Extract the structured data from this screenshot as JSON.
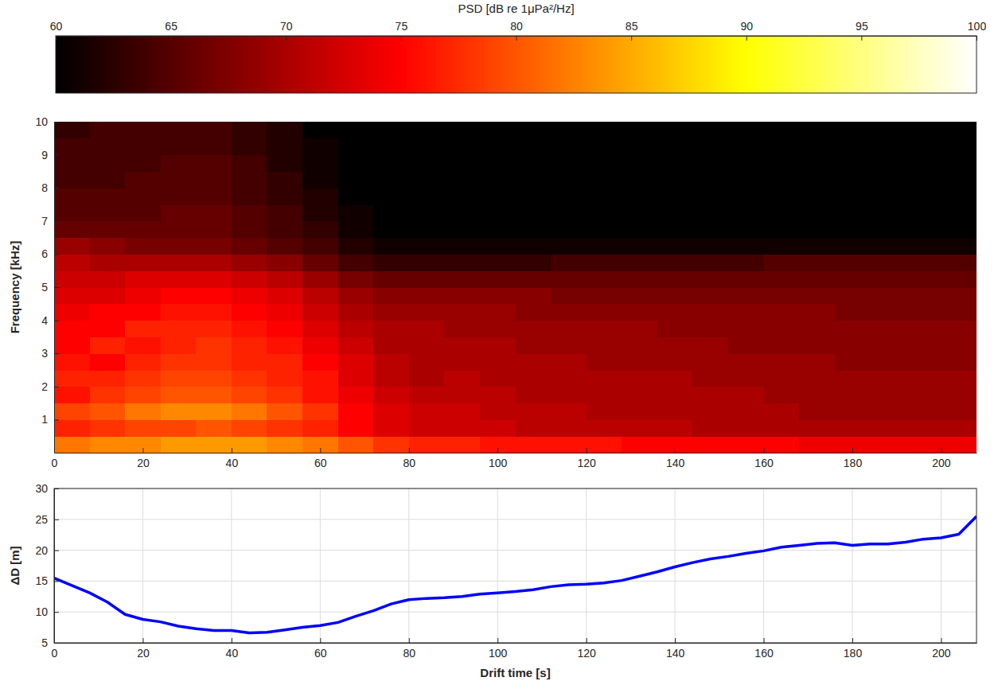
{
  "chart_data": [
    {
      "type": "heatmap",
      "y_label": "Frequency [kHz]",
      "xlim": [
        0,
        208
      ],
      "xticks": [
        0,
        20,
        40,
        60,
        80,
        100,
        120,
        140,
        160,
        180,
        200
      ],
      "ylim": [
        0,
        10
      ],
      "yticks": [
        1,
        2,
        3,
        4,
        5,
        6,
        7,
        8,
        9,
        10
      ],
      "time_bins": [
        0,
        8,
        16,
        24,
        32,
        40,
        48,
        56,
        64,
        72,
        80,
        88,
        96,
        104,
        112,
        120,
        128,
        136,
        144,
        152,
        160,
        168,
        176,
        184,
        192,
        200,
        208
      ],
      "frequency_bins": [
        0,
        0.5,
        1,
        1.5,
        2,
        2.5,
        3,
        3.5,
        4,
        4.5,
        5,
        5.5,
        6,
        6.5,
        7,
        7.5,
        8,
        8.5,
        9,
        9.5,
        10
      ],
      "values": [
        [
          82,
          83,
          83,
          84,
          84,
          84,
          83,
          82,
          80,
          78,
          77,
          77,
          76,
          76,
          76,
          76,
          75,
          75,
          75,
          75,
          75,
          74,
          74,
          74,
          74,
          74
        ],
        [
          77,
          78,
          79,
          79,
          80,
          79,
          78,
          77,
          75,
          73,
          72,
          72,
          72,
          71,
          71,
          71,
          71,
          71,
          70,
          70,
          70,
          70,
          70,
          70,
          70,
          70
        ],
        [
          79,
          80,
          82,
          83,
          83,
          82,
          80,
          78,
          75,
          73,
          72,
          72,
          71,
          71,
          71,
          70,
          70,
          70,
          70,
          70,
          70,
          69,
          69,
          69,
          69,
          69
        ],
        [
          76,
          78,
          79,
          80,
          80,
          79,
          78,
          76,
          74,
          72,
          71,
          71,
          71,
          70,
          70,
          70,
          70,
          70,
          70,
          70,
          69,
          69,
          69,
          69,
          69,
          69
        ],
        [
          77,
          77,
          78,
          79,
          79,
          78,
          77,
          76,
          73,
          71,
          70,
          71,
          70,
          70,
          70,
          70,
          70,
          70,
          69,
          69,
          69,
          69,
          69,
          69,
          69,
          69
        ],
        [
          76,
          75,
          77,
          78,
          78,
          77,
          77,
          75,
          73,
          71,
          70,
          70,
          70,
          70,
          70,
          69,
          69,
          69,
          69,
          69,
          69,
          69,
          68,
          68,
          68,
          68
        ],
        [
          75,
          77,
          76,
          77,
          78,
          77,
          76,
          74,
          72,
          70,
          70,
          70,
          70,
          69,
          69,
          69,
          69,
          69,
          69,
          68,
          68,
          68,
          68,
          68,
          68,
          68
        ],
        [
          75,
          75,
          77,
          77,
          77,
          76,
          75,
          73,
          71,
          70,
          70,
          69,
          69,
          69,
          69,
          69,
          69,
          68,
          68,
          68,
          68,
          68,
          68,
          68,
          68,
          68
        ],
        [
          74,
          75,
          75,
          76,
          76,
          75,
          74,
          72,
          70,
          69,
          69,
          69,
          69,
          68,
          68,
          68,
          68,
          68,
          68,
          68,
          68,
          68,
          67,
          67,
          67,
          67
        ],
        [
          73,
          73,
          74,
          75,
          75,
          74,
          73,
          71,
          69,
          68,
          68,
          68,
          68,
          68,
          67,
          67,
          67,
          67,
          67,
          67,
          67,
          67,
          67,
          67,
          67,
          67
        ],
        [
          72,
          72,
          73,
          73,
          73,
          72,
          71,
          69,
          67,
          66,
          66,
          66,
          66,
          66,
          66,
          66,
          66,
          66,
          66,
          66,
          66,
          66,
          66,
          66,
          66,
          66
        ],
        [
          71,
          70,
          70,
          70,
          70,
          69,
          68,
          66,
          64,
          63,
          63,
          63,
          63,
          63,
          64,
          64,
          64,
          64,
          64,
          64,
          65,
          65,
          65,
          65,
          65,
          65
        ],
        [
          69,
          68,
          67,
          67,
          67,
          66,
          65,
          64,
          62,
          61,
          61,
          61,
          61,
          61,
          61,
          61,
          61,
          61,
          61,
          61,
          61,
          61,
          61,
          61,
          61,
          61
        ],
        [
          66,
          66,
          66,
          66,
          66,
          65,
          64,
          63,
          61,
          60,
          60,
          60,
          60,
          60,
          60,
          60,
          60,
          60,
          60,
          60,
          60,
          60,
          60,
          60,
          60,
          60
        ],
        [
          65,
          65,
          65,
          66,
          66,
          65,
          64,
          62,
          61,
          60,
          60,
          60,
          60,
          60,
          60,
          60,
          60,
          60,
          60,
          60,
          60,
          60,
          60,
          60,
          60,
          60
        ],
        [
          65,
          65,
          65,
          65,
          65,
          64,
          63,
          62,
          60,
          60,
          60,
          60,
          60,
          60,
          60,
          60,
          60,
          60,
          60,
          60,
          60,
          60,
          60,
          60,
          60,
          60
        ],
        [
          64,
          64,
          65,
          65,
          65,
          64,
          63,
          61,
          60,
          60,
          60,
          60,
          60,
          60,
          60,
          60,
          60,
          60,
          60,
          60,
          60,
          60,
          60,
          60,
          60,
          60
        ],
        [
          64,
          64,
          64,
          65,
          65,
          64,
          62,
          61,
          60,
          60,
          60,
          60,
          60,
          60,
          60,
          60,
          60,
          60,
          60,
          60,
          60,
          60,
          60,
          60,
          60,
          60
        ],
        [
          64,
          64,
          64,
          64,
          64,
          63,
          62,
          61,
          60,
          60,
          60,
          60,
          60,
          60,
          60,
          60,
          60,
          60,
          60,
          60,
          60,
          60,
          60,
          60,
          60,
          60
        ],
        [
          63,
          64,
          64,
          64,
          64,
          63,
          62,
          60,
          60,
          60,
          60,
          60,
          60,
          60,
          60,
          60,
          60,
          60,
          60,
          60,
          60,
          60,
          60,
          60,
          60,
          60
        ]
      ],
      "colorbar": {
        "label": "PSD [dB re 1μPa²/Hz]",
        "range": [
          60,
          100
        ],
        "ticks": [
          60,
          65,
          70,
          75,
          80,
          85,
          90,
          95,
          100
        ]
      }
    },
    {
      "type": "line",
      "x_label": "Drift time [s]",
      "y_label": "ΔD [m]",
      "xlim": [
        0,
        208
      ],
      "xticks": [
        0,
        20,
        40,
        60,
        80,
        100,
        120,
        140,
        160,
        180,
        200
      ],
      "ylim": [
        5,
        30
      ],
      "yticks": [
        5,
        10,
        15,
        20,
        25,
        30
      ],
      "grid": true,
      "x": [
        0,
        4,
        8,
        12,
        16,
        20,
        24,
        28,
        32,
        36,
        40,
        44,
        48,
        52,
        56,
        60,
        64,
        68,
        72,
        76,
        80,
        84,
        88,
        92,
        96,
        100,
        104,
        108,
        112,
        116,
        120,
        124,
        128,
        132,
        136,
        140,
        144,
        148,
        152,
        156,
        160,
        164,
        168,
        172,
        176,
        180,
        184,
        188,
        192,
        196,
        200,
        204,
        208
      ],
      "series": [
        {
          "color": "#0000ff",
          "values": [
            15.5,
            14.3,
            13.1,
            11.6,
            9.6,
            8.8,
            8.4,
            7.7,
            7.3,
            7.0,
            7.0,
            6.6,
            6.7,
            7.1,
            7.5,
            7.8,
            8.3,
            9.3,
            10.2,
            11.3,
            12.0,
            12.2,
            12.3,
            12.5,
            12.9,
            13.1,
            13.3,
            13.6,
            14.1,
            14.4,
            14.5,
            14.7,
            15.1,
            15.8,
            16.5,
            17.3,
            18.0,
            18.6,
            19.0,
            19.5,
            19.9,
            20.5,
            20.8,
            21.1,
            21.2,
            20.8,
            21.0,
            21.0,
            21.3,
            21.8,
            22.0,
            22.6,
            25.5
          ]
        }
      ]
    }
  ]
}
